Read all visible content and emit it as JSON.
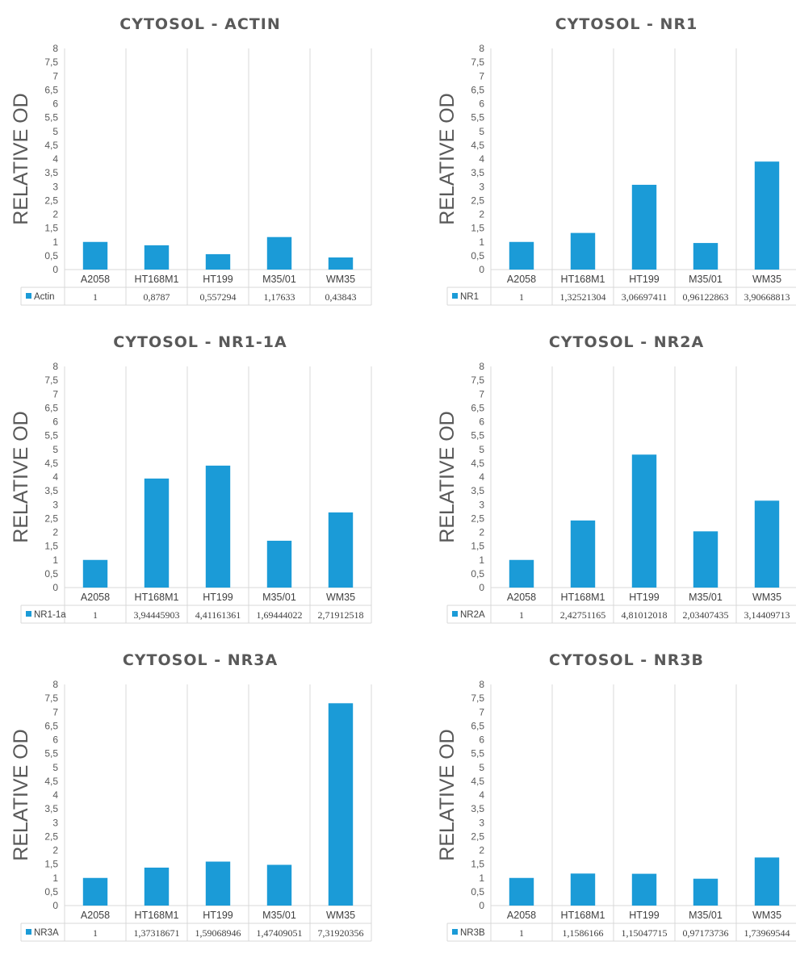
{
  "colors": {
    "bar": "#1b9bd7",
    "grid": "#d9d9d9",
    "text": "#595959"
  },
  "chart_data": [
    {
      "type": "bar",
      "title": "CYTOSOL - ACTIN",
      "ylabel": "RELATIVE OD",
      "xlabel": "",
      "ylim": [
        0,
        8
      ],
      "yticks": [
        "0",
        "0,5",
        "1",
        "1,5",
        "2",
        "2,5",
        "3",
        "3,5",
        "4",
        "4,5",
        "5",
        "5,5",
        "6",
        "6,5",
        "7",
        "7,5",
        "8"
      ],
      "categories": [
        "A2058",
        "HT168M1",
        "HT199",
        "M35/01",
        "WM35"
      ],
      "legend": "data-table",
      "series": [
        {
          "name": "Actin",
          "values": [
            1,
            0.8787,
            0.557294,
            1.17633,
            0.43843
          ],
          "labels": [
            "1",
            "0,8787",
            "0,557294",
            "1,17633",
            "0,43843"
          ]
        }
      ]
    },
    {
      "type": "bar",
      "title": "CYTOSOL - NR1",
      "ylabel": "RELATIVE OD",
      "xlabel": "",
      "ylim": [
        0,
        8
      ],
      "yticks": [
        "0",
        "0,5",
        "1",
        "1,5",
        "2",
        "2,5",
        "3",
        "3,5",
        "4",
        "4,5",
        "5",
        "5,5",
        "6",
        "6,5",
        "7",
        "7,5",
        "8"
      ],
      "categories": [
        "A2058",
        "HT168M1",
        "HT199",
        "M35/01",
        "WM35"
      ],
      "legend": "data-table",
      "series": [
        {
          "name": "NR1",
          "values": [
            1,
            1.32521304,
            3.06697411,
            0.96122863,
            3.90668813
          ],
          "labels": [
            "1",
            "1,32521304",
            "3,06697411",
            "0,96122863",
            "3,90668813"
          ]
        }
      ]
    },
    {
      "type": "bar",
      "title": "CYTOSOL - NR1-1A",
      "ylabel": "RELATIVE OD",
      "xlabel": "",
      "ylim": [
        0,
        8
      ],
      "yticks": [
        "0",
        "0,5",
        "1",
        "1,5",
        "2",
        "2,5",
        "3",
        "3,5",
        "4",
        "4,5",
        "5",
        "5,5",
        "6",
        "6,5",
        "7",
        "7,5",
        "8"
      ],
      "categories": [
        "A2058",
        "HT168M1",
        "HT199",
        "M35/01",
        "WM35"
      ],
      "legend": "data-table",
      "series": [
        {
          "name": "NR1-1a",
          "values": [
            1,
            3.94445903,
            4.41161361,
            1.69444022,
            2.71912518
          ],
          "labels": [
            "1",
            "3,94445903",
            "4,41161361",
            "1,69444022",
            "2,71912518"
          ]
        }
      ]
    },
    {
      "type": "bar",
      "title": "CYTOSOL - NR2A",
      "ylabel": "RELATIVE OD",
      "xlabel": "",
      "ylim": [
        0,
        8
      ],
      "yticks": [
        "0",
        "0,5",
        "1",
        "1,5",
        "2",
        "2,5",
        "3",
        "3,5",
        "4",
        "4,5",
        "5",
        "5,5",
        "6",
        "6,5",
        "7",
        "7,5",
        "8"
      ],
      "categories": [
        "A2058",
        "HT168M1",
        "HT199",
        "M35/01",
        "WM35"
      ],
      "legend": "data-table",
      "series": [
        {
          "name": "NR2A",
          "values": [
            1,
            2.42751165,
            4.81012018,
            2.03407435,
            3.14409713
          ],
          "labels": [
            "1",
            "2,42751165",
            "4,81012018",
            "2,03407435",
            "3,14409713"
          ]
        }
      ]
    },
    {
      "type": "bar",
      "title": "CYTOSOL - NR3A",
      "ylabel": "RELATIVE OD",
      "xlabel": "",
      "ylim": [
        0,
        8
      ],
      "yticks": [
        "0",
        "0,5",
        "1",
        "1,5",
        "2",
        "2,5",
        "3",
        "3,5",
        "4",
        "4,5",
        "5",
        "5,5",
        "6",
        "6,5",
        "7",
        "7,5",
        "8"
      ],
      "categories": [
        "A2058",
        "HT168M1",
        "HT199",
        "M35/01",
        "WM35"
      ],
      "legend": "data-table",
      "series": [
        {
          "name": "NR3A",
          "values": [
            1,
            1.37318671,
            1.59068946,
            1.47409051,
            7.31920356
          ],
          "labels": [
            "1",
            "1,37318671",
            "1,59068946",
            "1,47409051",
            "7,31920356"
          ]
        }
      ]
    },
    {
      "type": "bar",
      "title": "CYTOSOL - NR3B",
      "ylabel": "RELATIVE OD",
      "xlabel": "",
      "ylim": [
        0,
        8
      ],
      "yticks": [
        "0",
        "0,5",
        "1",
        "1,5",
        "2",
        "2,5",
        "3",
        "3,5",
        "4",
        "4,5",
        "5",
        "5,5",
        "6",
        "6,5",
        "7",
        "7,5",
        "8"
      ],
      "categories": [
        "A2058",
        "HT168M1",
        "HT199",
        "M35/01",
        "WM35"
      ],
      "legend": "data-table",
      "series": [
        {
          "name": "NR3B",
          "values": [
            1,
            1.1586166,
            1.15047715,
            0.97173736,
            1.73969544
          ],
          "labels": [
            "1",
            "1,1586166",
            "1,15047715",
            "0,97173736",
            "1,73969544"
          ]
        }
      ]
    }
  ]
}
